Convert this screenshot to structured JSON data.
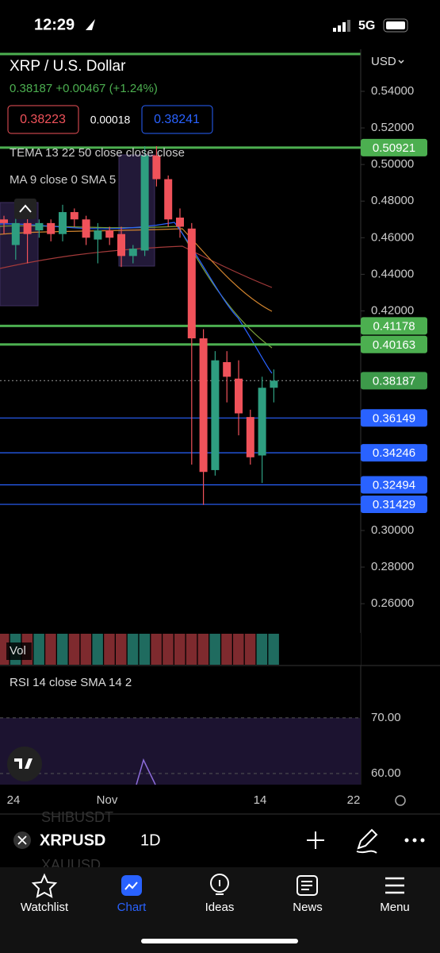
{
  "status": {
    "time": "12:29",
    "network": "5G"
  },
  "header": {
    "symbol_name": "XRP / U.S. Dollar",
    "price": "0.38187",
    "change": "+0.00467",
    "change_pct": "(+1.24%)",
    "bid": "0.38223",
    "spread": "0.00018",
    "ask": "0.38241",
    "currency": "USD",
    "indicators": [
      "TEMA 13 22 50 close close close",
      "MA 9 close 0 SMA 5"
    ]
  },
  "chart_data": {
    "type": "candlestick",
    "open": [
      0.47,
      0.456,
      0.468,
      0.464,
      0.468,
      0.462,
      0.474,
      0.47,
      0.459,
      0.464,
      0.462,
      0.45,
      0.453,
      0.505,
      0.492,
      0.471,
      0.465,
      0.405,
      0.333,
      0.392,
      0.383,
      0.362,
      0.341,
      0.378
    ],
    "high": [
      0.472,
      0.474,
      0.478,
      0.47,
      0.47,
      0.478,
      0.476,
      0.472,
      0.468,
      0.466,
      0.466,
      0.456,
      0.51,
      0.51,
      0.494,
      0.476,
      0.468,
      0.41,
      0.398,
      0.398,
      0.393,
      0.366,
      0.384,
      0.388
    ],
    "low": [
      0.462,
      0.448,
      0.446,
      0.46,
      0.458,
      0.458,
      0.466,
      0.456,
      0.446,
      0.456,
      0.444,
      0.446,
      0.45,
      0.488,
      0.466,
      0.46,
      0.336,
      0.314,
      0.33,
      0.37,
      0.352,
      0.336,
      0.326,
      0.37
    ],
    "close": [
      0.468,
      0.468,
      0.462,
      0.468,
      0.462,
      0.474,
      0.47,
      0.46,
      0.464,
      0.46,
      0.45,
      0.454,
      0.505,
      0.492,
      0.47,
      0.466,
      0.405,
      0.332,
      0.393,
      0.384,
      0.364,
      0.34,
      0.378,
      0.38187
    ],
    "up_color": "#2e9e80",
    "down_color": "#f0525a",
    "ylim": [
      0.244,
      0.563
    ],
    "yticks": [
      {
        "value": 0.54,
        "label": "0.54000"
      },
      {
        "value": 0.52,
        "label": "0.52000"
      },
      {
        "value": 0.5,
        "label": "0.50000"
      },
      {
        "value": 0.48,
        "label": "0.48000"
      },
      {
        "value": 0.46,
        "label": "0.46000"
      },
      {
        "value": 0.44,
        "label": "0.44000"
      },
      {
        "value": 0.42,
        "label": "0.42000"
      },
      {
        "value": 0.3,
        "label": "0.30000"
      },
      {
        "value": 0.28,
        "label": "0.28000"
      },
      {
        "value": 0.26,
        "label": "0.26000"
      }
    ],
    "levels": [
      {
        "value": 0.50921,
        "color": "#4caf50"
      },
      {
        "value": 0.41178,
        "color": "#4caf50"
      },
      {
        "value": 0.40163,
        "color": "#4caf50"
      },
      {
        "value": 0.38187,
        "color": "#3d9a4a",
        "dotted": true
      },
      {
        "value": 0.36149,
        "color": "#2962ff"
      },
      {
        "value": 0.34246,
        "color": "#2962ff"
      },
      {
        "value": 0.32494,
        "color": "#2962ff"
      },
      {
        "value": 0.31429,
        "color": "#2962ff"
      }
    ],
    "x_labels": [
      "24",
      "Nov",
      "14",
      "22"
    ],
    "volume_label": "Vol",
    "rsi": {
      "title": "RSI 14 close SMA 14 2",
      "ylim": [
        58,
        79.1
      ],
      "yticks": [
        {
          "value": 70,
          "label": "70.00"
        },
        {
          "value": 60,
          "label": "60.00"
        }
      ]
    }
  },
  "toolbar": {
    "symbol": "XRPUSD",
    "interval": "1D",
    "ghost": [
      "SHIBUSDT",
      "XAUUSD"
    ]
  },
  "tabs": [
    "Watchlist",
    "Chart",
    "Ideas",
    "News",
    "Menu"
  ]
}
